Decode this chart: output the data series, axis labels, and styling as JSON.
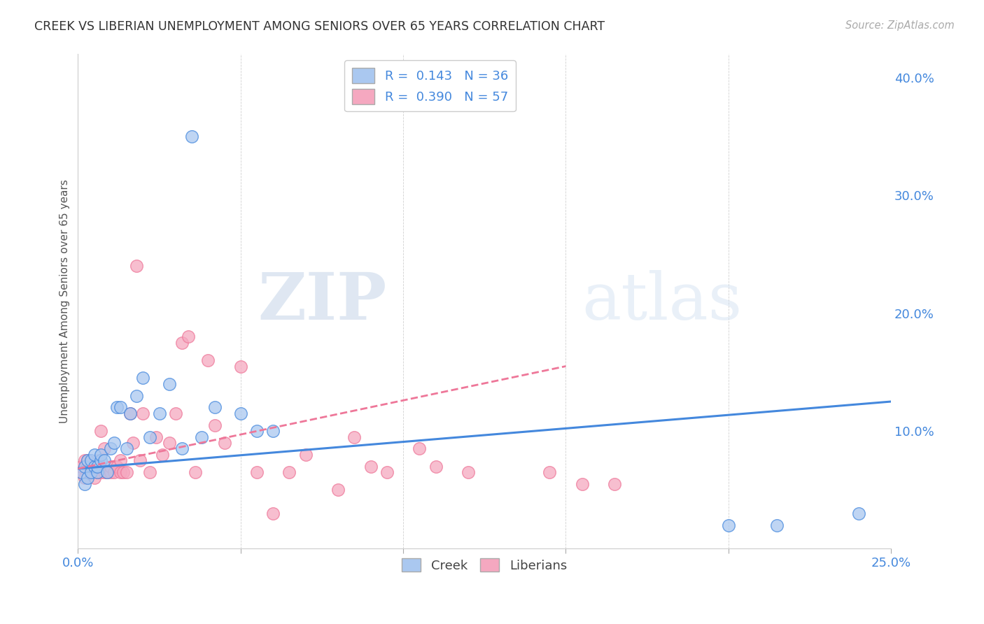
{
  "title": "CREEK VS LIBERIAN UNEMPLOYMENT AMONG SENIORS OVER 65 YEARS CORRELATION CHART",
  "source": "Source: ZipAtlas.com",
  "ylabel": "Unemployment Among Seniors over 65 years",
  "xlim": [
    0.0,
    0.25
  ],
  "ylim": [
    0.0,
    0.42
  ],
  "xticks": [
    0.0,
    0.05,
    0.1,
    0.15,
    0.2,
    0.25
  ],
  "xticklabels": [
    "0.0%",
    "",
    "",
    "",
    "",
    "25.0%"
  ],
  "yticks_right": [
    0.0,
    0.1,
    0.2,
    0.3,
    0.4
  ],
  "yticklabels_right": [
    "",
    "10.0%",
    "20.0%",
    "30.0%",
    "40.0%"
  ],
  "creek_R": "0.143",
  "creek_N": "36",
  "liberian_R": "0.390",
  "liberian_N": "57",
  "creek_color": "#aac8f0",
  "liberian_color": "#f5a8c0",
  "creek_line_color": "#4488dd",
  "liberian_line_color": "#ee7799",
  "watermark_zip": "ZIP",
  "watermark_atlas": "atlas",
  "creek_points_x": [
    0.001,
    0.002,
    0.002,
    0.003,
    0.003,
    0.004,
    0.004,
    0.005,
    0.005,
    0.006,
    0.006,
    0.007,
    0.007,
    0.008,
    0.009,
    0.01,
    0.011,
    0.012,
    0.013,
    0.015,
    0.016,
    0.018,
    0.02,
    0.022,
    0.025,
    0.028,
    0.032,
    0.038,
    0.042,
    0.05,
    0.055,
    0.06,
    0.2,
    0.215,
    0.24,
    0.035
  ],
  "creek_points_y": [
    0.065,
    0.07,
    0.055,
    0.075,
    0.06,
    0.075,
    0.065,
    0.07,
    0.08,
    0.065,
    0.07,
    0.075,
    0.08,
    0.075,
    0.065,
    0.085,
    0.09,
    0.12,
    0.12,
    0.085,
    0.115,
    0.13,
    0.145,
    0.095,
    0.115,
    0.14,
    0.085,
    0.095,
    0.12,
    0.115,
    0.1,
    0.1,
    0.02,
    0.02,
    0.03,
    0.35
  ],
  "liberian_points_x": [
    0.001,
    0.001,
    0.002,
    0.002,
    0.003,
    0.003,
    0.004,
    0.004,
    0.005,
    0.005,
    0.006,
    0.006,
    0.007,
    0.007,
    0.007,
    0.008,
    0.008,
    0.009,
    0.01,
    0.01,
    0.011,
    0.012,
    0.013,
    0.013,
    0.014,
    0.015,
    0.016,
    0.017,
    0.018,
    0.019,
    0.02,
    0.022,
    0.024,
    0.026,
    0.028,
    0.03,
    0.032,
    0.034,
    0.036,
    0.04,
    0.042,
    0.045,
    0.05,
    0.055,
    0.06,
    0.065,
    0.07,
    0.08,
    0.085,
    0.09,
    0.095,
    0.105,
    0.11,
    0.12,
    0.145,
    0.155,
    0.165
  ],
  "liberian_points_y": [
    0.065,
    0.07,
    0.06,
    0.075,
    0.07,
    0.075,
    0.065,
    0.07,
    0.06,
    0.07,
    0.065,
    0.075,
    0.065,
    0.07,
    0.1,
    0.065,
    0.085,
    0.065,
    0.065,
    0.07,
    0.065,
    0.07,
    0.065,
    0.075,
    0.065,
    0.065,
    0.115,
    0.09,
    0.24,
    0.075,
    0.115,
    0.065,
    0.095,
    0.08,
    0.09,
    0.115,
    0.175,
    0.18,
    0.065,
    0.16,
    0.105,
    0.09,
    0.155,
    0.065,
    0.03,
    0.065,
    0.08,
    0.05,
    0.095,
    0.07,
    0.065,
    0.085,
    0.07,
    0.065,
    0.065,
    0.055,
    0.055
  ]
}
